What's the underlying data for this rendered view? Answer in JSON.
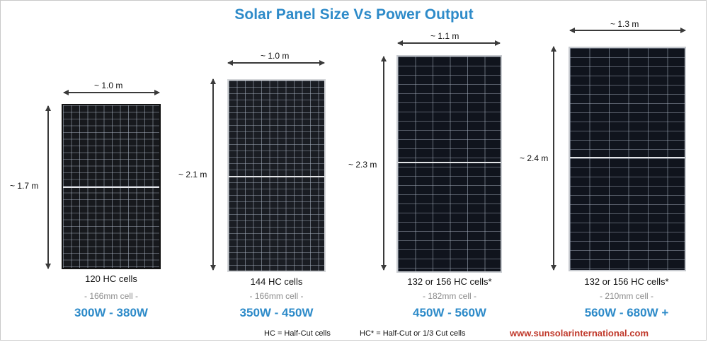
{
  "title": "Solar Panel Size Vs Power Output",
  "panels": [
    {
      "width_label": "~ 1.0 m",
      "height_label": "~ 1.7 m",
      "cells": "120 HC cells",
      "cell_size": "- 166mm cell -",
      "power": "300W - 380W"
    },
    {
      "width_label": "~ 1.0 m",
      "height_label": "~ 2.1 m",
      "cells": "144 HC cells",
      "cell_size": "- 166mm cell -",
      "power": "350W - 450W"
    },
    {
      "width_label": "~ 1.1 m",
      "height_label": "~ 2.3 m",
      "cells": "132 or 156 HC cells*",
      "cell_size": "- 182mm cell -",
      "power": "450W - 560W"
    },
    {
      "width_label": "~ 1.3 m",
      "height_label": "~ 2.4 m",
      "cells": "132 or 156 HC cells*",
      "cell_size": "- 210mm cell -",
      "power": "560W  - 680W +"
    }
  ],
  "legend": {
    "hc": "HC = Half-Cut cells",
    "hc_star": "HC* = Half-Cut or 1/3 Cut cells"
  },
  "website": "www.sunsolarinternational.com",
  "colors": {
    "accent": "#2e8bc9",
    "website": "#c0392b",
    "panel": "#1a1d23"
  }
}
